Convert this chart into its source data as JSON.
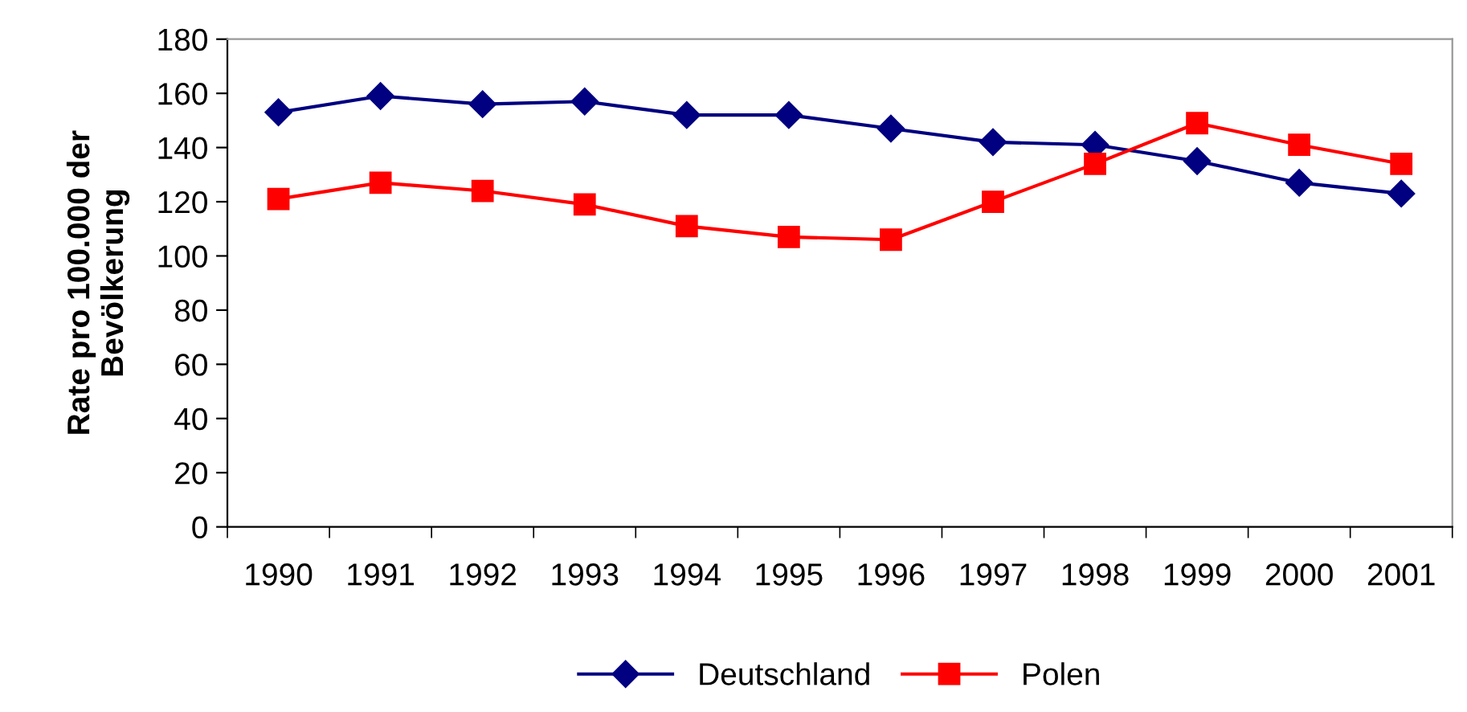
{
  "chart_data": {
    "type": "line",
    "ylabel": "Rate pro 100.000 der\nBevölkerung",
    "categories": [
      "1990",
      "1991",
      "1992",
      "1993",
      "1994",
      "1995",
      "1996",
      "1997",
      "1998",
      "1999",
      "2000",
      "2001"
    ],
    "series": [
      {
        "name": "Deutschland",
        "color": "#000080",
        "marker": "diamond",
        "values": [
          153,
          159,
          156,
          157,
          152,
          152,
          147,
          142,
          141,
          135,
          127,
          123
        ]
      },
      {
        "name": "Polen",
        "color": "#ff0000",
        "marker": "square",
        "values": [
          121,
          127,
          124,
          119,
          111,
          107,
          106,
          120,
          134,
          149,
          141,
          134
        ]
      }
    ],
    "ylim": [
      0,
      180
    ],
    "yticks": [
      0,
      20,
      40,
      60,
      80,
      100,
      120,
      140,
      160,
      180
    ],
    "grid": false,
    "legend": "bottom"
  }
}
